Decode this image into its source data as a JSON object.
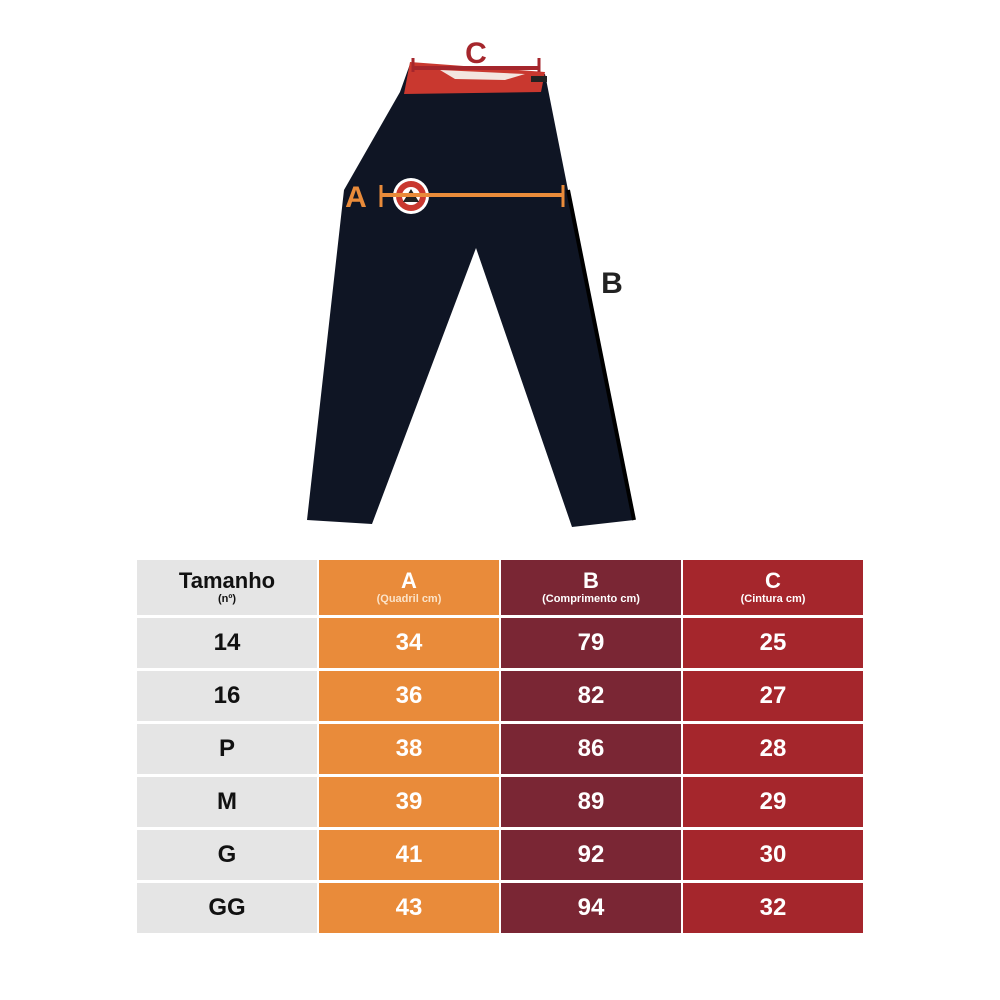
{
  "diagram": {
    "labels": {
      "a": "A",
      "b": "B",
      "c": "C"
    },
    "colors": {
      "garment": "#0f1524",
      "waistband": "#c9382f",
      "a_marker": "#e98b3a",
      "c_marker": "#a5262c",
      "b_label": "#222222"
    }
  },
  "table": {
    "headers": [
      {
        "title": "Tamanho",
        "sub": "(nº)"
      },
      {
        "title": "A",
        "sub": "(Quadril cm)"
      },
      {
        "title": "B",
        "sub": "(Comprimento cm)"
      },
      {
        "title": "C",
        "sub": "(Cintura cm)"
      }
    ],
    "rows": [
      [
        "14",
        "34",
        "79",
        "25"
      ],
      [
        "16",
        "36",
        "82",
        "27"
      ],
      [
        "P",
        "38",
        "86",
        "28"
      ],
      [
        "M",
        "39",
        "89",
        "29"
      ],
      [
        "G",
        "41",
        "92",
        "30"
      ],
      [
        "GG",
        "43",
        "94",
        "32"
      ]
    ],
    "colors": {
      "size": "#e5e5e5",
      "a": "#e98b3a",
      "b": "#7a2634",
      "c": "#a5262c"
    }
  }
}
